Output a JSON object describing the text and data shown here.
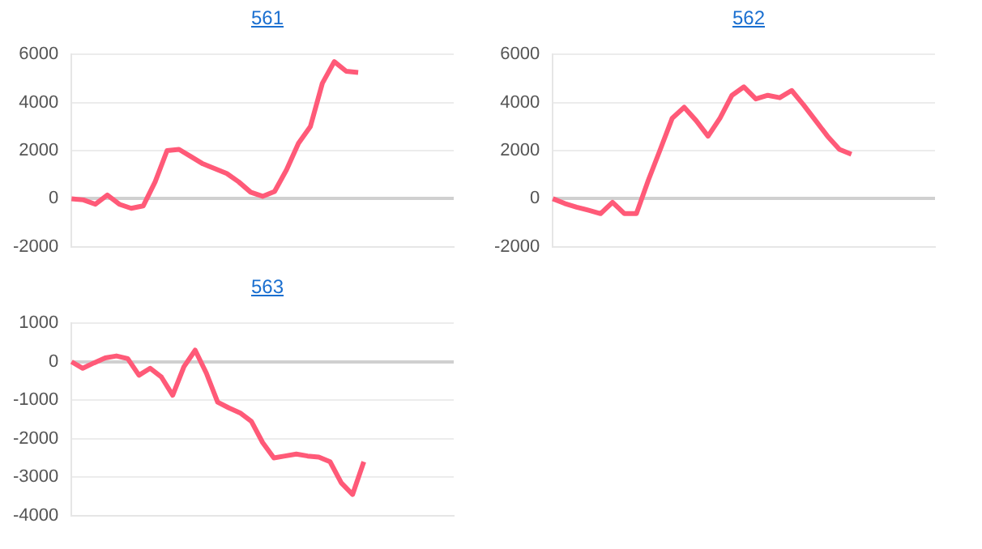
{
  "chart_data": [
    {
      "type": "line",
      "title": "561",
      "categories": [
        null,
        null,
        null,
        null,
        null,
        null,
        null,
        null,
        null,
        null,
        null,
        null,
        null,
        null,
        null,
        null,
        null,
        null,
        null,
        null,
        null,
        null,
        null,
        null,
        null,
        null,
        null,
        null,
        null,
        null,
        null,
        null,
        null
      ],
      "ylim": [
        -2000,
        6000
      ],
      "yticks": [
        -2000,
        0,
        2000,
        4000,
        6000
      ],
      "grid": "y",
      "tick_labels": "y",
      "marker": "none",
      "series": [
        {
          "color": "#ff5a78",
          "values": [
            0,
            -50,
            -230,
            150,
            -230,
            -400,
            -300,
            700,
            2000,
            2050,
            1750,
            1450,
            1250,
            1050,
            700,
            270,
            100,
            300,
            1200,
            2300,
            3000,
            4800,
            5700,
            5300,
            5250,
            null,
            null,
            null,
            null,
            null,
            null,
            null,
            null
          ]
        }
      ]
    },
    {
      "type": "line",
      "title": "562",
      "categories": [
        null,
        null,
        null,
        null,
        null,
        null,
        null,
        null,
        null,
        null,
        null,
        null,
        null,
        null,
        null,
        null,
        null,
        null,
        null,
        null,
        null,
        null,
        null,
        null,
        null,
        null,
        null,
        null,
        null,
        null,
        null,
        null,
        null
      ],
      "ylim": [
        -2000,
        6000
      ],
      "yticks": [
        -2000,
        0,
        2000,
        4000,
        6000
      ],
      "grid": "y",
      "tick_labels": "y",
      "marker": "none",
      "series": [
        {
          "color": "#ff5a78",
          "values": [
            0,
            -200,
            -350,
            -480,
            -620,
            -150,
            -620,
            -620,
            770,
            2050,
            3350,
            3800,
            3250,
            2600,
            3350,
            4300,
            4650,
            4150,
            4300,
            4200,
            4500,
            3900,
            3250,
            2600,
            2050,
            1850,
            null,
            null,
            null,
            null,
            null,
            null,
            null
          ]
        }
      ]
    },
    {
      "type": "line",
      "title": "563",
      "categories": [
        null,
        null,
        null,
        null,
        null,
        null,
        null,
        null,
        null,
        null,
        null,
        null,
        null,
        null,
        null,
        null,
        null,
        null,
        null,
        null,
        null,
        null,
        null,
        null,
        null,
        null,
        null,
        null,
        null,
        null,
        null,
        null,
        null,
        null,
        null
      ],
      "ylim": [
        -4000,
        1000
      ],
      "yticks": [
        -4000,
        -3000,
        -2000,
        -1000,
        0,
        1000
      ],
      "grid": "y",
      "tick_labels": "y",
      "marker": "none",
      "series": [
        {
          "color": "#ff5a78",
          "values": [
            0,
            -170,
            -30,
            100,
            150,
            80,
            -350,
            -170,
            -400,
            -870,
            -130,
            300,
            -300,
            -1050,
            -1200,
            -1330,
            -1550,
            -2100,
            -2500,
            -2450,
            -2400,
            -2450,
            -2480,
            -2600,
            -3150,
            -3450,
            -2600,
            null,
            null,
            null,
            null,
            null,
            null,
            null,
            null
          ]
        }
      ]
    }
  ]
}
